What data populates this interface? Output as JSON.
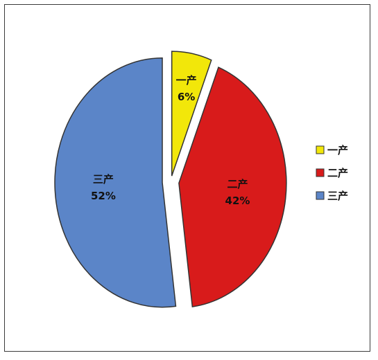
{
  "chart_data": {
    "type": "pie",
    "categories": [
      "一产",
      "二产",
      "三产"
    ],
    "values": [
      6,
      42,
      52
    ],
    "value_labels": [
      "6%",
      "42%",
      "52%"
    ],
    "colors": [
      "#f2e70a",
      "#d81b1b",
      "#5b85c8"
    ],
    "exploded": true,
    "legend_position": "right"
  }
}
